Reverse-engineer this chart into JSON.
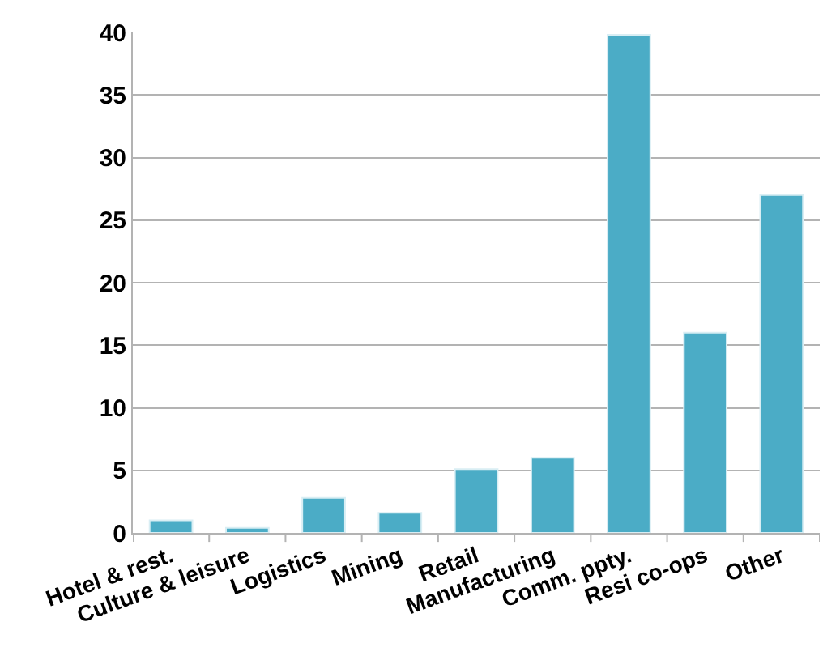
{
  "chart_data": {
    "type": "bar",
    "categories": [
      "Hotel & rest.",
      "Culture & leisure",
      "Logistics",
      "Mining",
      "Retail",
      "Manufacturing",
      "Comm. ppty.",
      "Resi co-ops",
      "Other"
    ],
    "values": [
      1.0,
      0.4,
      2.8,
      1.6,
      5.1,
      6.0,
      39.8,
      16.0,
      27.0
    ],
    "color": "#4bacc6",
    "ylim": [
      0,
      40
    ],
    "yticks": [
      0,
      5,
      10,
      15,
      20,
      25,
      30,
      35,
      40
    ],
    "grid": "y"
  }
}
